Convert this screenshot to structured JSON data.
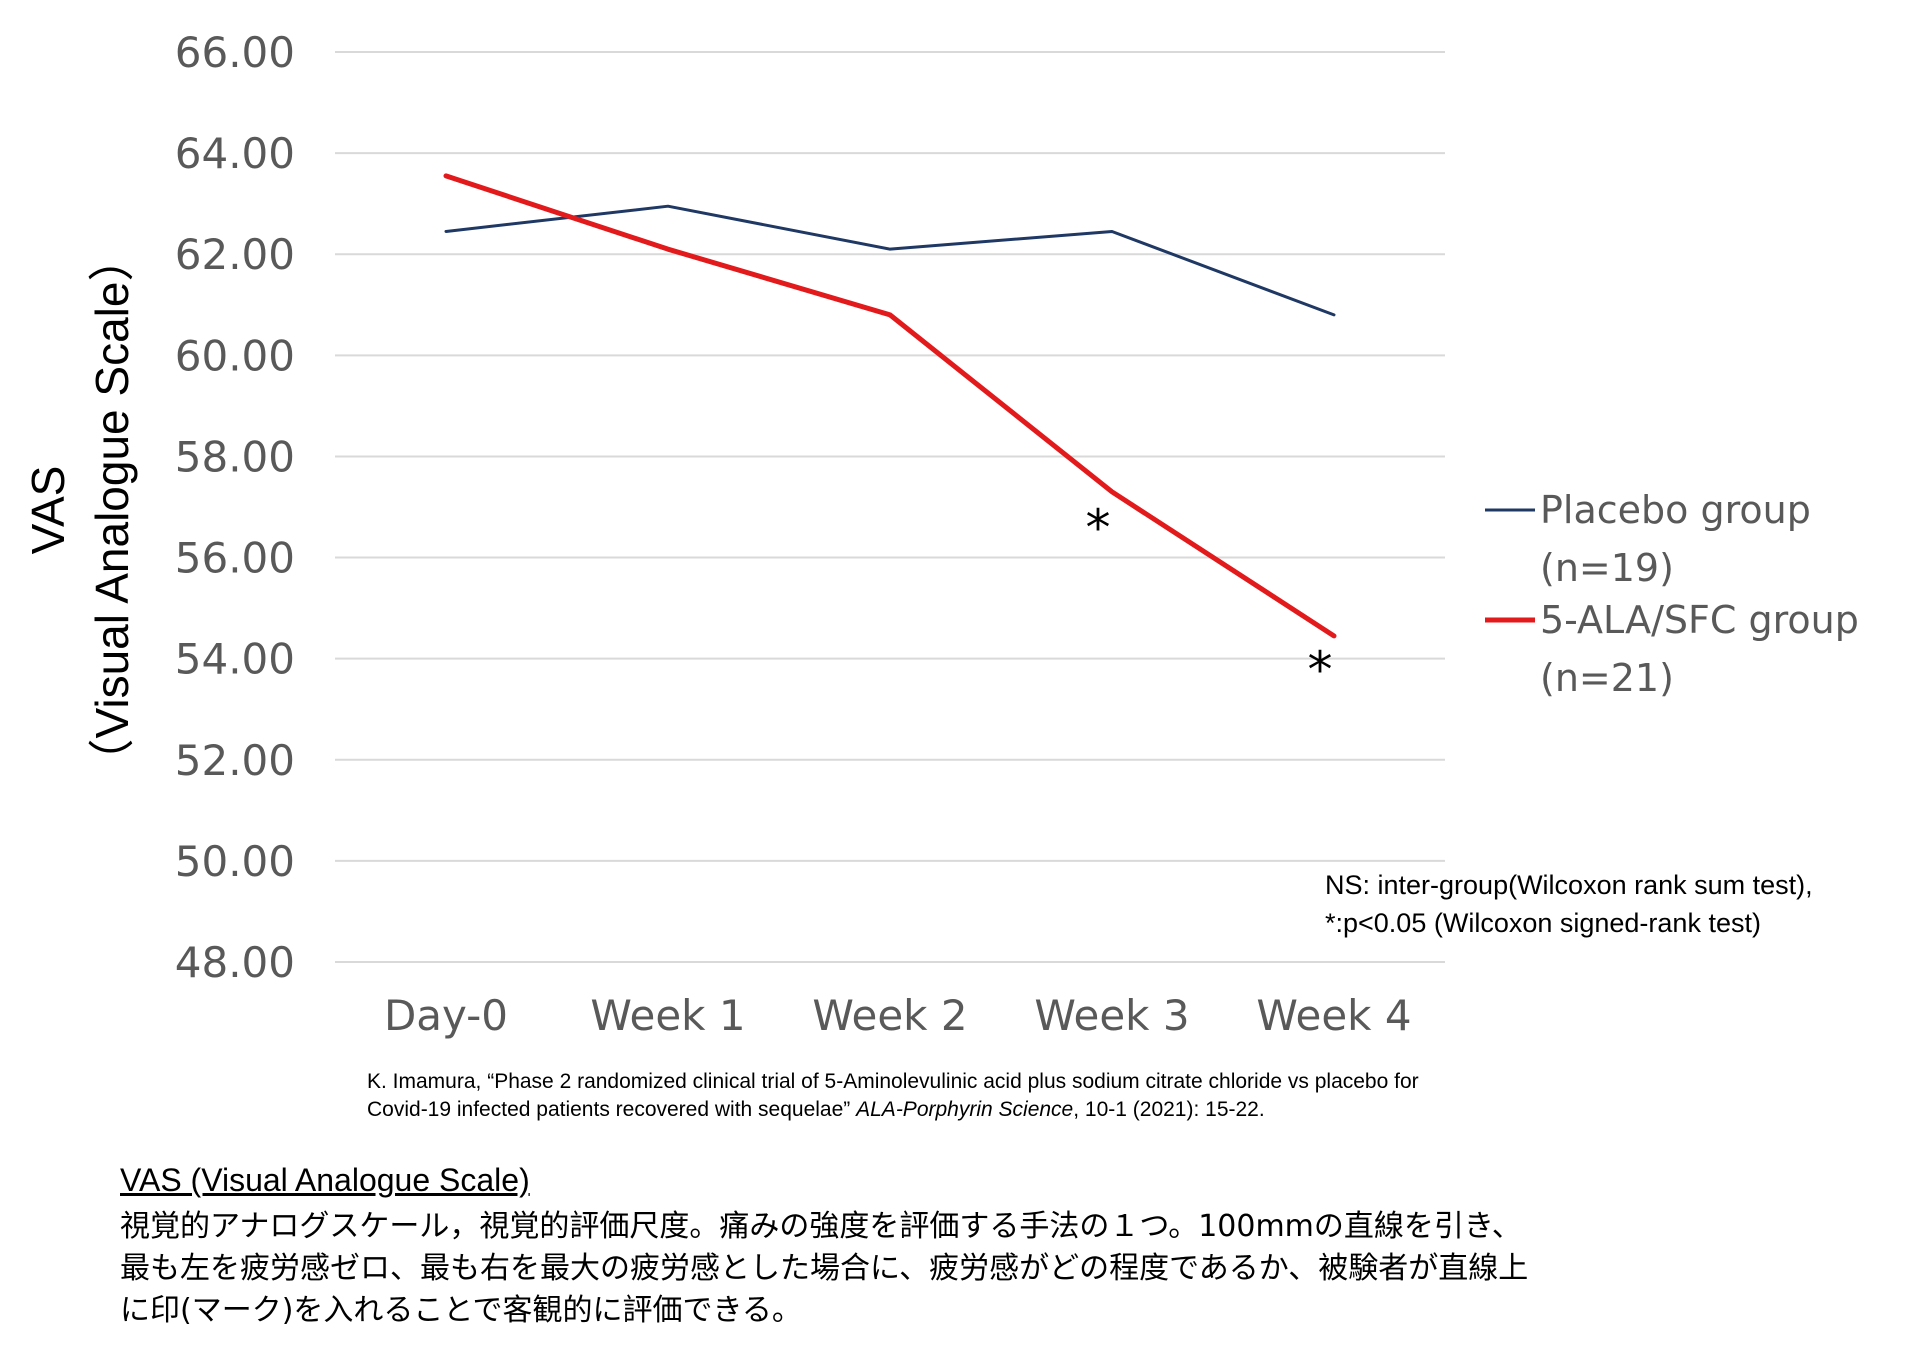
{
  "chart_data": {
    "type": "line",
    "categories": [
      "Day-0",
      "Week 1",
      "Week 2",
      "Week 3",
      "Week 4"
    ],
    "series": [
      {
        "name": "Placebo group",
        "legend_lines": [
          "Placebo group",
          "(n=19)"
        ],
        "color": "#1f3864",
        "values": [
          62.45,
          62.95,
          62.1,
          62.45,
          60.8
        ]
      },
      {
        "name": "5-ALA/SFC group",
        "legend_lines": [
          "5-ALA/SFC group",
          "(n=21)"
        ],
        "color": "#e31a1c",
        "values": [
          63.55,
          62.1,
          60.8,
          57.3,
          54.45
        ]
      }
    ],
    "ylim": [
      48,
      66
    ],
    "yticks": [
      "66.00",
      "64.00",
      "62.00",
      "60.00",
      "58.00",
      "56.00",
      "54.00",
      "52.00",
      "50.00",
      "48.00"
    ],
    "ylabel": "VAS",
    "ylabel_sub": "（Visual Analogue Scale）",
    "xlabel": "",
    "grid": true,
    "legend_position": "right",
    "annotations": [
      {
        "text": "*",
        "category": "Week 3",
        "value": 56.6
      },
      {
        "text": "*",
        "category": "Week 4",
        "value": 53.8
      }
    ]
  },
  "stat_note": {
    "line1": "NS: inter-group(Wilcoxon rank sum test),",
    "line2": "*:p<0.05 (Wilcoxon signed-rank test)"
  },
  "citation": {
    "line1": "K. Imamura, “Phase 2 randomized clinical trial of 5-Aminolevulinic acid plus sodium citrate chloride vs placebo for",
    "line2_pre": "Covid-19 infected patients recovered with sequelae” ",
    "journal": "ALA-Porphyrin Science",
    "line2_post": ", 10-1 (2021): 15-22."
  },
  "definition": {
    "title": "VAS (Visual Analogue Scale)",
    "line1": "視覚的アナログスケール，視覚的評価尺度。痛みの強度を評価する手法の１つ。100mmの直線を引き、",
    "line2": "最も左を疲労感ゼロ、最も右を最大の疲労感とした場合に、疲労感がどの程度であるか、被験者が直線上",
    "line3": "に印(マーク)を入れることで客観的に評価できる。"
  }
}
